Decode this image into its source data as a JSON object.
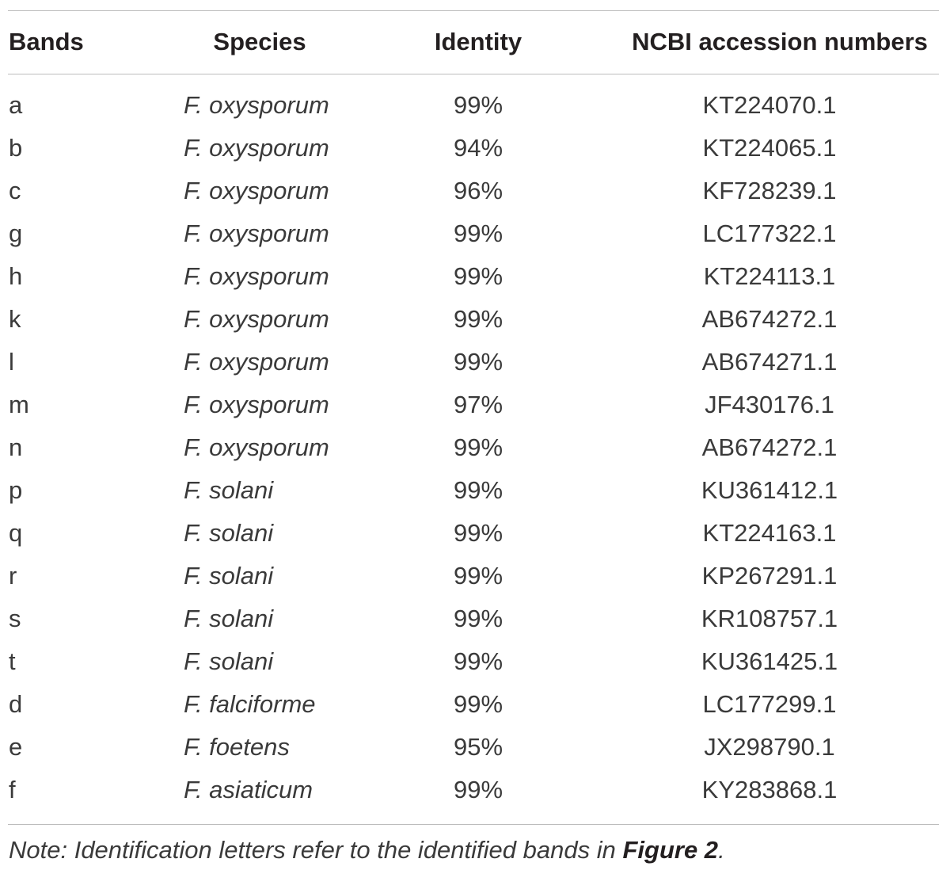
{
  "table": {
    "headers": {
      "bands": "Bands",
      "species": "Species",
      "identity": "Identity",
      "ncbi": "NCBI accession numbers"
    },
    "rows": [
      {
        "band": "a",
        "species": "F. oxysporum",
        "identity": "99%",
        "accession": "KT224070.1"
      },
      {
        "band": "b",
        "species": "F. oxysporum",
        "identity": "94%",
        "accession": "KT224065.1"
      },
      {
        "band": "c",
        "species": "F. oxysporum",
        "identity": "96%",
        "accession": "KF728239.1"
      },
      {
        "band": "g",
        "species": "F. oxysporum",
        "identity": "99%",
        "accession": "LC177322.1"
      },
      {
        "band": "h",
        "species": "F. oxysporum",
        "identity": "99%",
        "accession": "KT224113.1"
      },
      {
        "band": "k",
        "species": "F. oxysporum",
        "identity": "99%",
        "accession": "AB674272.1"
      },
      {
        "band": "l",
        "species": "F. oxysporum",
        "identity": "99%",
        "accession": "AB674271.1"
      },
      {
        "band": "m",
        "species": "F. oxysporum",
        "identity": "97%",
        "accession": "JF430176.1"
      },
      {
        "band": "n",
        "species": "F. oxysporum",
        "identity": "99%",
        "accession": "AB674272.1"
      },
      {
        "band": "p",
        "species": "F. solani",
        "identity": "99%",
        "accession": "KU361412.1"
      },
      {
        "band": "q",
        "species": "F. solani",
        "identity": "99%",
        "accession": "KT224163.1"
      },
      {
        "band": "r",
        "species": "F. solani",
        "identity": "99%",
        "accession": "KP267291.1"
      },
      {
        "band": "s",
        "species": "F. solani",
        "identity": "99%",
        "accession": "KR108757.1"
      },
      {
        "band": "t",
        "species": "F. solani",
        "identity": "99%",
        "accession": "KU361425.1"
      },
      {
        "band": "d",
        "species": "F. falciforme",
        "identity": "99%",
        "accession": "LC177299.1"
      },
      {
        "band": "e",
        "species": "F. foetens",
        "identity": "95%",
        "accession": "JX298790.1"
      },
      {
        "band": "f",
        "species": "F. asiaticum",
        "identity": "99%",
        "accession": "KY283868.1"
      }
    ]
  },
  "note": {
    "prefix": "Note: Identification letters refer to the identified bands in ",
    "figure_ref": "Figure 2",
    "suffix": "."
  }
}
